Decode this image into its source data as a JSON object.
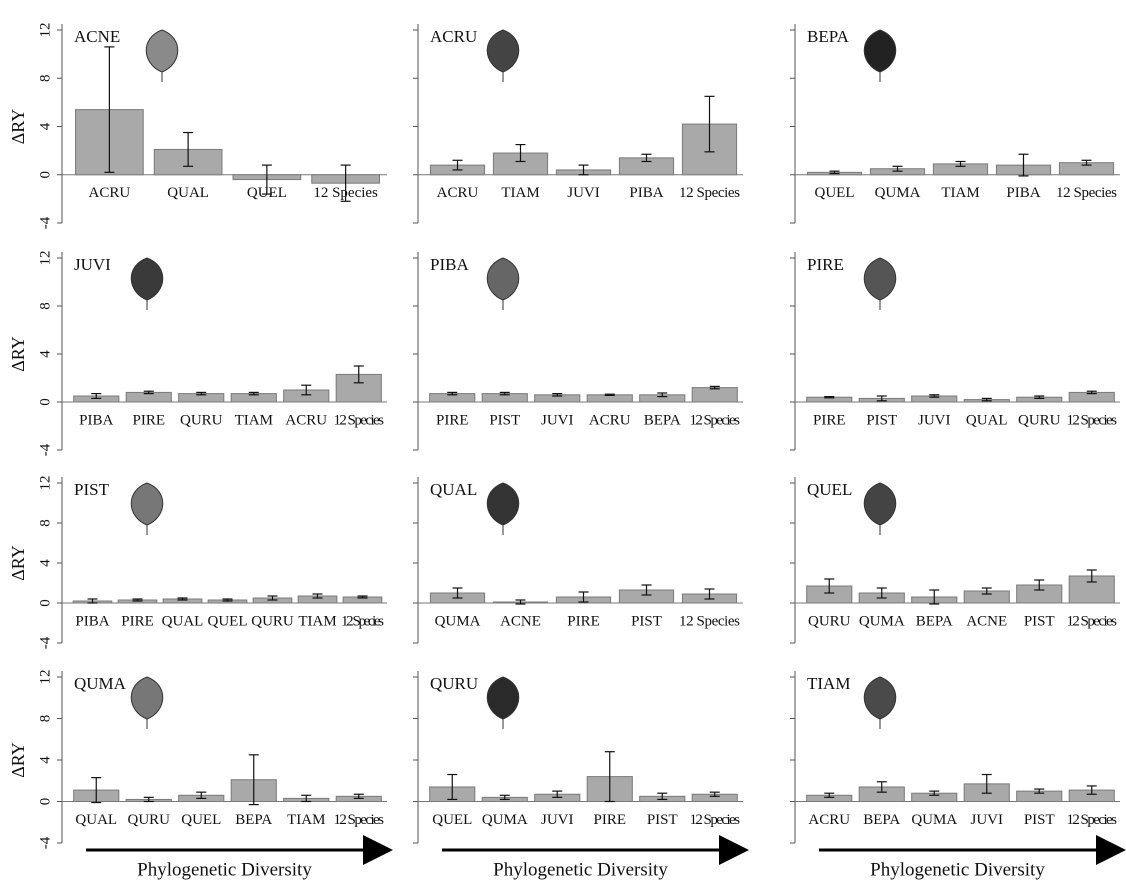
{
  "chart_data": [
    {
      "type": "bar",
      "title": "ACNE",
      "ylabel": "ΔRY",
      "categories": [
        "ACRU",
        "QUAL",
        "QUEL",
        "12 Species"
      ],
      "values": [
        5.4,
        2.1,
        -0.4,
        -0.7
      ],
      "errors": [
        5.2,
        1.4,
        1.2,
        1.5
      ],
      "color": "#a9a9a9",
      "ylim": [
        -4,
        12
      ],
      "yticks": [
        -4,
        0,
        4,
        8,
        12
      ]
    },
    {
      "type": "bar",
      "title": "ACRU",
      "categories": [
        "ACRU",
        "TIAM",
        "JUVI",
        "PIBA",
        "12 Species"
      ],
      "values": [
        0.8,
        1.8,
        0.4,
        1.4,
        4.2
      ],
      "errors": [
        0.4,
        0.7,
        0.4,
        0.3,
        2.3
      ],
      "color": "#a9a9a9",
      "ylim": [
        -4,
        12
      ],
      "yticks": [
        -4,
        0,
        4,
        8,
        12
      ]
    },
    {
      "type": "bar",
      "title": "BEPA",
      "categories": [
        "QUEL",
        "QUMA",
        "TIAM",
        "PIBA",
        "12 Species"
      ],
      "values": [
        0.2,
        0.5,
        0.9,
        0.8,
        1.0
      ],
      "errors": [
        0.1,
        0.2,
        0.2,
        0.9,
        0.2
      ],
      "color": "#a9a9a9",
      "ylim": [
        -4,
        12
      ],
      "yticks": [
        -4,
        0,
        4,
        8,
        12
      ]
    },
    {
      "type": "bar",
      "title": "JUVI",
      "ylabel": "ΔRY",
      "categories": [
        "PIBA",
        "PIRE",
        "QURU",
        "TIAM",
        "ACRU",
        "12 Species"
      ],
      "values": [
        0.5,
        0.8,
        0.7,
        0.7,
        1.0,
        2.3
      ],
      "errors": [
        0.2,
        0.1,
        0.1,
        0.1,
        0.4,
        0.7
      ],
      "color": "#a9a9a9",
      "ylim": [
        -4,
        12
      ],
      "yticks": [
        -4,
        0,
        4,
        8,
        12
      ]
    },
    {
      "type": "bar",
      "title": "PIBA",
      "categories": [
        "PIRE",
        "PIST",
        "JUVI",
        "ACRU",
        "BEPA",
        "12 Species"
      ],
      "values": [
        0.7,
        0.7,
        0.6,
        0.6,
        0.6,
        1.2
      ],
      "errors": [
        0.1,
        0.1,
        0.1,
        0.05,
        0.15,
        0.1
      ],
      "color": "#a9a9a9",
      "ylim": [
        -4,
        12
      ],
      "yticks": [
        -4,
        0,
        4,
        8,
        12
      ]
    },
    {
      "type": "bar",
      "title": "PIRE",
      "categories": [
        "PIRE",
        "PIST",
        "JUVI",
        "QUAL",
        "QURU",
        "12 Species"
      ],
      "values": [
        0.4,
        0.3,
        0.5,
        0.2,
        0.4,
        0.8
      ],
      "errors": [
        0.05,
        0.2,
        0.1,
        0.1,
        0.1,
        0.1
      ],
      "color": "#a9a9a9",
      "ylim": [
        -4,
        12
      ],
      "yticks": [
        -4,
        0,
        4,
        8,
        12
      ]
    },
    {
      "type": "bar",
      "title": "PIST",
      "ylabel": "ΔRY",
      "categories": [
        "PIBA",
        "PIRE",
        "QUAL",
        "QUEL",
        "QURU",
        "TIAM",
        "12 Species"
      ],
      "values": [
        0.2,
        0.3,
        0.4,
        0.3,
        0.5,
        0.7,
        0.6
      ],
      "errors": [
        0.2,
        0.1,
        0.1,
        0.1,
        0.2,
        0.2,
        0.1
      ],
      "color": "#a9a9a9",
      "ylim": [
        -4,
        12
      ],
      "yticks": [
        -4,
        0,
        4,
        8,
        12
      ]
    },
    {
      "type": "bar",
      "title": "QUAL",
      "categories": [
        "QUMA",
        "ACNE",
        "PIRE",
        "PIST",
        "12 Species"
      ],
      "values": [
        1.0,
        0.1,
        0.6,
        1.3,
        0.9
      ],
      "errors": [
        0.5,
        0.2,
        0.5,
        0.5,
        0.5
      ],
      "color": "#a9a9a9",
      "ylim": [
        -4,
        12
      ],
      "yticks": [
        -4,
        0,
        4,
        8,
        12
      ]
    },
    {
      "type": "bar",
      "title": "QUEL",
      "categories": [
        "QURU",
        "QUMA",
        "BEPA",
        "ACNE",
        "PIST",
        "12 Species"
      ],
      "values": [
        1.7,
        1.0,
        0.6,
        1.2,
        1.8,
        2.7
      ],
      "errors": [
        0.7,
        0.5,
        0.7,
        0.3,
        0.5,
        0.6
      ],
      "color": "#a9a9a9",
      "ylim": [
        -4,
        12
      ],
      "yticks": [
        -4,
        0,
        4,
        8,
        12
      ]
    },
    {
      "type": "bar",
      "title": "QUMA",
      "ylabel": "ΔRY",
      "xlabel": "Phylogenetic Diversity",
      "categories": [
        "QUAL",
        "QURU",
        "QUEL",
        "BEPA",
        "TIAM",
        "12 Species"
      ],
      "values": [
        1.1,
        0.2,
        0.6,
        2.1,
        0.3,
        0.5
      ],
      "errors": [
        1.2,
        0.2,
        0.3,
        2.4,
        0.3,
        0.2
      ],
      "color": "#a9a9a9",
      "ylim": [
        -4,
        12
      ],
      "yticks": [
        -4,
        0,
        4,
        8,
        12
      ]
    },
    {
      "type": "bar",
      "title": "QURU",
      "xlabel": "Phylogenetic Diversity",
      "categories": [
        "QUEL",
        "QUMA",
        "JUVI",
        "PIRE",
        "PIST",
        "12 Species"
      ],
      "values": [
        1.4,
        0.4,
        0.7,
        2.4,
        0.5,
        0.7
      ],
      "errors": [
        1.2,
        0.2,
        0.3,
        2.4,
        0.3,
        0.2
      ],
      "color": "#a9a9a9",
      "ylim": [
        -4,
        12
      ],
      "yticks": [
        -4,
        0,
        4,
        8,
        12
      ]
    },
    {
      "type": "bar",
      "title": "TIAM",
      "xlabel": "Phylogenetic Diversity",
      "categories": [
        "ACRU",
        "BEPA",
        "QUMA",
        "JUVI",
        "PIST",
        "12 Species"
      ],
      "values": [
        0.6,
        1.4,
        0.8,
        1.7,
        1.0,
        1.1
      ],
      "errors": [
        0.2,
        0.5,
        0.2,
        0.9,
        0.2,
        0.4
      ],
      "color": "#a9a9a9",
      "ylim": [
        -4,
        12
      ],
      "yticks": [
        -4,
        0,
        4,
        8,
        12
      ]
    }
  ]
}
